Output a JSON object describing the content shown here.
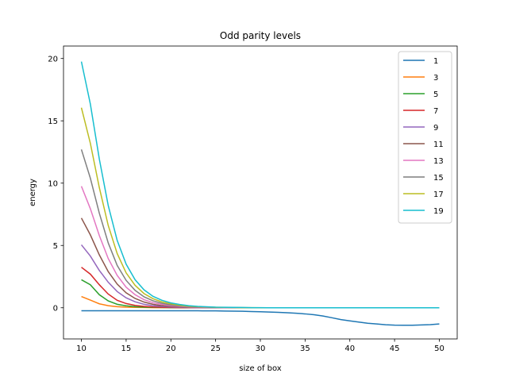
{
  "chart_data": {
    "type": "line",
    "title": "Odd parity levels",
    "xlabel": "size of box",
    "ylabel": "energy",
    "xlim": [
      8.0,
      52.0
    ],
    "ylim": [
      -2.5,
      21.0
    ],
    "xticks": [
      10,
      15,
      20,
      25,
      30,
      35,
      40,
      45,
      50
    ],
    "yticks": [
      0,
      5,
      10,
      15,
      20
    ],
    "grid": false,
    "legend_position": "top-right",
    "x": [
      10,
      11,
      12,
      13,
      14,
      15,
      16,
      17,
      18,
      19,
      20,
      21,
      22,
      23,
      24,
      25,
      26,
      27,
      28,
      29,
      30,
      31,
      32,
      33,
      34,
      35,
      36,
      37,
      38,
      39,
      40,
      41,
      42,
      43,
      44,
      45,
      46,
      47,
      48,
      49,
      50
    ],
    "series": [
      {
        "name": "1",
        "color": "#1f77b4",
        "values": [
          -0.24,
          -0.24,
          -0.24,
          -0.24,
          -0.24,
          -0.24,
          -0.24,
          -0.24,
          -0.24,
          -0.24,
          -0.24,
          -0.24,
          -0.24,
          -0.24,
          -0.25,
          -0.25,
          -0.26,
          -0.27,
          -0.28,
          -0.3,
          -0.32,
          -0.34,
          -0.37,
          -0.4,
          -0.44,
          -0.49,
          -0.56,
          -0.66,
          -0.8,
          -0.95,
          -1.05,
          -1.15,
          -1.24,
          -1.3,
          -1.36,
          -1.39,
          -1.4,
          -1.4,
          -1.38,
          -1.35,
          -1.3
        ]
      },
      {
        "name": "3",
        "color": "#ff7f0e",
        "values": [
          0.9,
          0.62,
          0.32,
          0.17,
          0.09,
          0.05,
          0.03,
          0.02,
          0.01,
          0.01,
          0.01,
          0,
          0,
          0,
          0,
          0,
          0,
          0,
          0,
          0,
          0,
          0,
          0,
          0,
          0,
          0,
          0,
          0,
          0,
          0,
          0,
          0,
          0,
          0,
          0,
          0,
          0,
          0,
          0,
          0,
          0
        ]
      },
      {
        "name": "5",
        "color": "#2ca02c",
        "values": [
          2.25,
          1.85,
          1.05,
          0.55,
          0.28,
          0.16,
          0.09,
          0.05,
          0.03,
          0.02,
          0.01,
          0.01,
          0,
          0,
          0,
          0,
          0,
          0,
          0,
          0,
          0,
          0,
          0,
          0,
          0,
          0,
          0,
          0,
          0,
          0,
          0,
          0,
          0,
          0,
          0,
          0,
          0,
          0,
          0,
          0,
          0
        ]
      },
      {
        "name": "7",
        "color": "#d62728",
        "values": [
          3.25,
          2.7,
          1.85,
          1.1,
          0.6,
          0.34,
          0.19,
          0.11,
          0.06,
          0.04,
          0.02,
          0.01,
          0.01,
          0,
          0,
          0,
          0,
          0,
          0,
          0,
          0,
          0,
          0,
          0,
          0,
          0,
          0,
          0,
          0,
          0,
          0,
          0,
          0,
          0,
          0,
          0,
          0,
          0,
          0,
          0,
          0
        ]
      },
      {
        "name": "9",
        "color": "#9467bd",
        "values": [
          5.05,
          4.15,
          3.0,
          2.05,
          1.3,
          0.8,
          0.48,
          0.28,
          0.17,
          0.1,
          0.06,
          0.04,
          0.02,
          0.01,
          0.01,
          0,
          0,
          0,
          0,
          0,
          0,
          0,
          0,
          0,
          0,
          0,
          0,
          0,
          0,
          0,
          0,
          0,
          0,
          0,
          0,
          0,
          0,
          0,
          0,
          0,
          0
        ]
      },
      {
        "name": "11",
        "color": "#8c564b",
        "values": [
          7.2,
          5.85,
          4.25,
          2.9,
          1.9,
          1.2,
          0.75,
          0.46,
          0.28,
          0.17,
          0.11,
          0.07,
          0.04,
          0.03,
          0.02,
          0.01,
          0.01,
          0,
          0,
          0,
          0,
          0,
          0,
          0,
          0,
          0,
          0,
          0,
          0,
          0,
          0,
          0,
          0,
          0,
          0,
          0,
          0,
          0,
          0,
          0,
          0
        ]
      },
      {
        "name": "13",
        "color": "#e377c2",
        "values": [
          9.75,
          7.95,
          5.8,
          3.95,
          2.6,
          1.65,
          1.05,
          0.65,
          0.41,
          0.26,
          0.17,
          0.11,
          0.07,
          0.05,
          0.03,
          0.02,
          0.01,
          0.01,
          0,
          0,
          0,
          0,
          0,
          0,
          0,
          0,
          0,
          0,
          0,
          0,
          0,
          0,
          0,
          0,
          0,
          0,
          0,
          0,
          0,
          0,
          0
        ]
      },
      {
        "name": "15",
        "color": "#7f7f7f",
        "values": [
          12.7,
          10.4,
          7.6,
          5.2,
          3.4,
          2.2,
          1.4,
          0.88,
          0.56,
          0.36,
          0.23,
          0.15,
          0.1,
          0.07,
          0.05,
          0.03,
          0.02,
          0.01,
          0.01,
          0,
          0,
          0,
          0,
          0,
          0,
          0,
          0,
          0,
          0,
          0,
          0,
          0,
          0,
          0,
          0,
          0,
          0,
          0,
          0,
          0,
          0
        ]
      },
      {
        "name": "17",
        "color": "#bcbd22",
        "values": [
          16.05,
          13.2,
          9.65,
          6.6,
          4.35,
          2.8,
          1.8,
          1.14,
          0.73,
          0.47,
          0.31,
          0.2,
          0.13,
          0.09,
          0.06,
          0.04,
          0.03,
          0.02,
          0.01,
          0.01,
          0,
          0,
          0,
          0,
          0,
          0,
          0,
          0,
          0,
          0,
          0,
          0,
          0,
          0,
          0,
          0,
          0,
          0,
          0,
          0,
          0
        ]
      },
      {
        "name": "19",
        "color": "#17becf",
        "values": [
          19.75,
          16.35,
          11.95,
          8.2,
          5.4,
          3.5,
          2.25,
          1.44,
          0.92,
          0.6,
          0.39,
          0.26,
          0.17,
          0.11,
          0.08,
          0.05,
          0.04,
          0.03,
          0.02,
          0.01,
          0.01,
          0,
          0,
          0,
          0,
          0,
          0,
          0,
          0,
          0,
          0,
          0,
          0,
          0,
          0,
          0,
          0,
          0,
          0,
          0,
          0
        ]
      }
    ]
  }
}
